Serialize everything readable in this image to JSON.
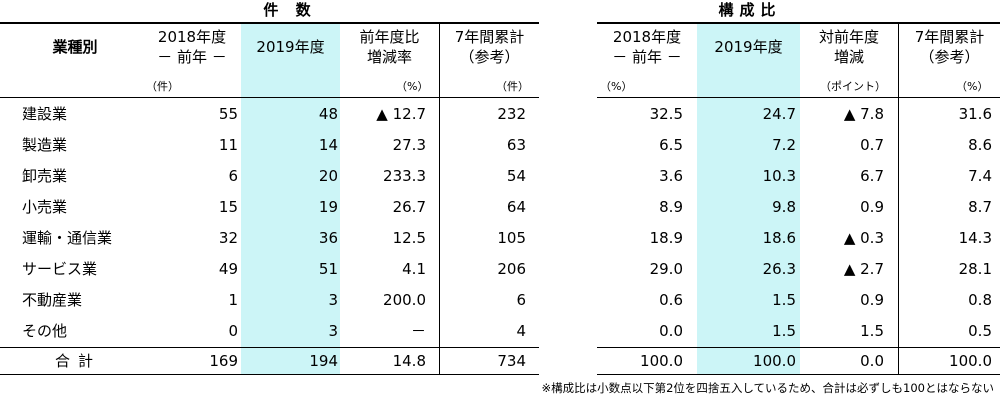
{
  "sections": {
    "count": "件 数",
    "ratio": "構成比"
  },
  "headers": {
    "industry": "業種別",
    "prev_line1": "2018年度",
    "prev_line2": "－ 前年 －",
    "cur": "2019年度",
    "yoy_line1": "前年度比",
    "yoy_line2": "増減率",
    "cum_line1": "7年間累計",
    "cum_line2": "（参考）",
    "r_prev_line1": "2018年度",
    "r_prev_line2": "－ 前年 －",
    "r_cur": "2019年度",
    "r_diff_line1": "対前年度",
    "r_diff_line2": "増減",
    "r_cum_line1": "7年間累計",
    "r_cum_line2": "（参考）"
  },
  "units": {
    "prev": "（件）",
    "yoy": "（%）",
    "cum": "（件）",
    "r_prev": "（%）",
    "r_diff": "（ポイント）",
    "r_cum": "（%）"
  },
  "rows": [
    {
      "name": "建設業",
      "prev": "55",
      "cur": "48",
      "yoy": "▲ 12.7",
      "cum": "232",
      "r_prev": "32.5",
      "r_cur": "24.7",
      "r_diff": "▲ 7.8",
      "r_cum": "31.6"
    },
    {
      "name": "製造業",
      "prev": "11",
      "cur": "14",
      "yoy": "27.3",
      "cum": "63",
      "r_prev": "6.5",
      "r_cur": "7.2",
      "r_diff": "0.7",
      "r_cum": "8.6"
    },
    {
      "name": "卸売業",
      "prev": "6",
      "cur": "20",
      "yoy": "233.3",
      "cum": "54",
      "r_prev": "3.6",
      "r_cur": "10.3",
      "r_diff": "6.7",
      "r_cum": "7.4"
    },
    {
      "name": "小売業",
      "prev": "15",
      "cur": "19",
      "yoy": "26.7",
      "cum": "64",
      "r_prev": "8.9",
      "r_cur": "9.8",
      "r_diff": "0.9",
      "r_cum": "8.7"
    },
    {
      "name": "運輸・通信業",
      "prev": "32",
      "cur": "36",
      "yoy": "12.5",
      "cum": "105",
      "r_prev": "18.9",
      "r_cur": "18.6",
      "r_diff": "▲ 0.3",
      "r_cum": "14.3"
    },
    {
      "name": "サービス業",
      "prev": "49",
      "cur": "51",
      "yoy": "4.1",
      "cum": "206",
      "r_prev": "29.0",
      "r_cur": "26.3",
      "r_diff": "▲ 2.7",
      "r_cum": "28.1"
    },
    {
      "name": "不動産業",
      "prev": "1",
      "cur": "3",
      "yoy": "200.0",
      "cum": "6",
      "r_prev": "0.6",
      "r_cur": "1.5",
      "r_diff": "0.9",
      "r_cum": "0.8"
    },
    {
      "name": "その他",
      "prev": "0",
      "cur": "3",
      "yoy": "－",
      "cum": "4",
      "r_prev": "0.0",
      "r_cur": "1.5",
      "r_diff": "1.5",
      "r_cum": "0.5"
    }
  ],
  "total": {
    "name": "合計",
    "prev": "169",
    "cur": "194",
    "yoy": "14.8",
    "cum": "734",
    "r_prev": "100.0",
    "r_cur": "100.0",
    "r_diff": "0.0",
    "r_cum": "100.0"
  },
  "note": "※構成比は小数点以下第2位を四捨五入しているため、合計は必ずしも100とはならない",
  "colors": {
    "highlight": "#ccf5f7"
  }
}
